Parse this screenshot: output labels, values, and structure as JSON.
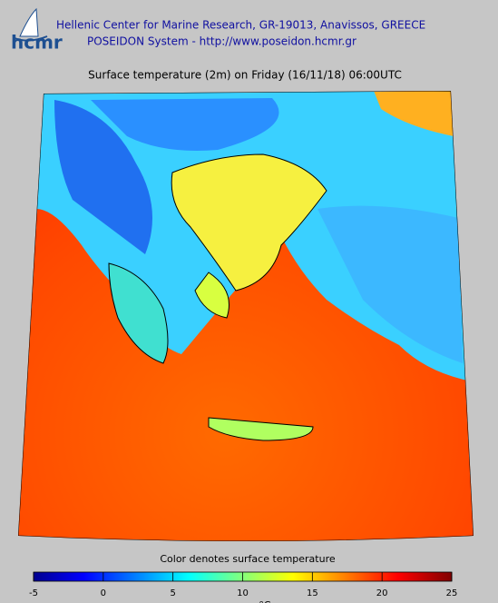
{
  "logo": "hcmr",
  "header": {
    "line1": "Hellenic Center for Marine Research, GR-19013, Anavissos, GREECE",
    "line2": "POSEIDON System - http://www.poseidon.hcmr.gr"
  },
  "title": "Surface temperature (2m) on Friday (16/11/18) 06:00UTC",
  "colorbar": {
    "label": "Color denotes surface temperature",
    "units": "°C",
    "range": [
      -5,
      25
    ],
    "ticks": [
      -5,
      0,
      5,
      10,
      15,
      20,
      25
    ]
  }
}
